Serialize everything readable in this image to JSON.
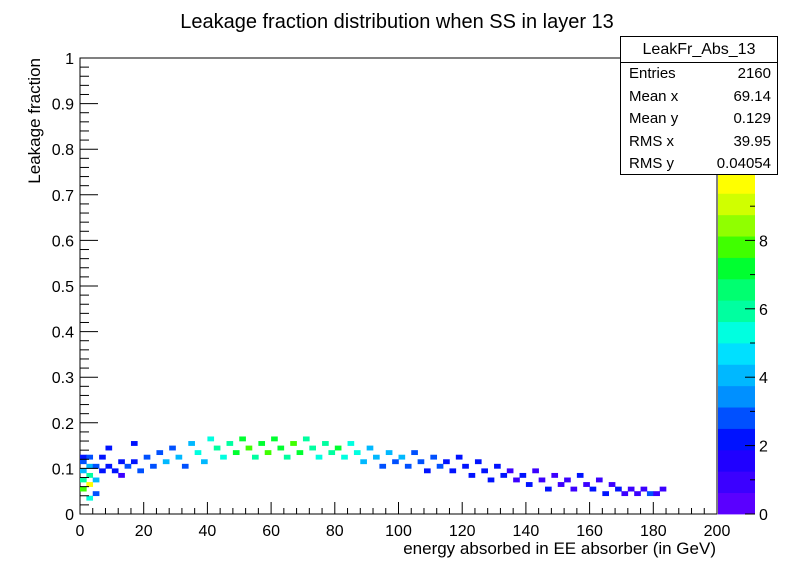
{
  "chart_data": {
    "type": "heatmap",
    "title": "Leakage fraction distribution when SS in layer 13",
    "xlabel": "energy absorbed in EE absorber (in GeV)",
    "ylabel": "Leakage fraction",
    "xlim": [
      0,
      200
    ],
    "ylim": [
      0,
      1
    ],
    "x_ticks": [
      "0",
      "20",
      "40",
      "60",
      "80",
      "100",
      "120",
      "140",
      "160",
      "180",
      "200"
    ],
    "y_ticks": [
      "0",
      "0.1",
      "0.2",
      "0.3",
      "0.4",
      "0.5",
      "0.6",
      "0.7",
      "0.8",
      "0.9",
      "1"
    ],
    "z_range": [
      0,
      10
    ],
    "z_ticks": [
      "0",
      "2",
      "4",
      "6",
      "8"
    ],
    "bins": {
      "x_width": 2,
      "y_width": 0.01
    },
    "cells": [
      [
        0,
        0.05,
        8
      ],
      [
        0,
        0.07,
        6
      ],
      [
        0,
        0.09,
        4
      ],
      [
        0,
        0.11,
        3
      ],
      [
        0,
        0.12,
        2
      ],
      [
        2,
        0.03,
        5
      ],
      [
        2,
        0.06,
        10
      ],
      [
        2,
        0.08,
        6
      ],
      [
        2,
        0.1,
        4
      ],
      [
        2,
        0.12,
        3
      ],
      [
        4,
        0.04,
        3
      ],
      [
        4,
        0.07,
        4
      ],
      [
        4,
        0.1,
        3
      ],
      [
        6,
        0.09,
        2
      ],
      [
        6,
        0.12,
        2
      ],
      [
        8,
        0.1,
        2
      ],
      [
        8,
        0.14,
        2
      ],
      [
        10,
        0.09,
        2
      ],
      [
        12,
        0.08,
        1
      ],
      [
        12,
        0.11,
        2
      ],
      [
        14,
        0.1,
        3
      ],
      [
        16,
        0.11,
        2
      ],
      [
        16,
        0.15,
        2
      ],
      [
        18,
        0.09,
        3
      ],
      [
        20,
        0.12,
        3
      ],
      [
        22,
        0.1,
        3
      ],
      [
        24,
        0.13,
        3
      ],
      [
        26,
        0.11,
        4
      ],
      [
        28,
        0.14,
        3
      ],
      [
        30,
        0.12,
        4
      ],
      [
        32,
        0.1,
        3
      ],
      [
        34,
        0.15,
        4
      ],
      [
        36,
        0.13,
        5
      ],
      [
        38,
        0.11,
        4
      ],
      [
        40,
        0.16,
        5
      ],
      [
        42,
        0.14,
        6
      ],
      [
        44,
        0.12,
        5
      ],
      [
        46,
        0.15,
        6
      ],
      [
        48,
        0.13,
        7
      ],
      [
        50,
        0.16,
        7
      ],
      [
        52,
        0.14,
        8
      ],
      [
        54,
        0.12,
        6
      ],
      [
        56,
        0.15,
        7
      ],
      [
        58,
        0.13,
        8
      ],
      [
        60,
        0.16,
        7
      ],
      [
        62,
        0.14,
        7
      ],
      [
        64,
        0.12,
        6
      ],
      [
        66,
        0.15,
        8
      ],
      [
        68,
        0.13,
        7
      ],
      [
        70,
        0.16,
        6
      ],
      [
        72,
        0.14,
        6
      ],
      [
        74,
        0.12,
        5
      ],
      [
        76,
        0.15,
        6
      ],
      [
        78,
        0.13,
        6
      ],
      [
        80,
        0.14,
        7
      ],
      [
        82,
        0.12,
        5
      ],
      [
        84,
        0.15,
        5
      ],
      [
        86,
        0.13,
        5
      ],
      [
        88,
        0.11,
        4
      ],
      [
        90,
        0.14,
        4
      ],
      [
        92,
        0.12,
        4
      ],
      [
        94,
        0.1,
        3
      ],
      [
        96,
        0.13,
        4
      ],
      [
        98,
        0.11,
        3
      ],
      [
        100,
        0.12,
        4
      ],
      [
        102,
        0.1,
        3
      ],
      [
        104,
        0.13,
        3
      ],
      [
        106,
        0.11,
        3
      ],
      [
        108,
        0.09,
        2
      ],
      [
        110,
        0.12,
        3
      ],
      [
        112,
        0.1,
        3
      ],
      [
        114,
        0.11,
        2
      ],
      [
        116,
        0.09,
        2
      ],
      [
        118,
        0.12,
        2
      ],
      [
        120,
        0.1,
        2
      ],
      [
        122,
        0.08,
        2
      ],
      [
        124,
        0.11,
        2
      ],
      [
        126,
        0.09,
        2
      ],
      [
        128,
        0.07,
        2
      ],
      [
        130,
        0.1,
        2
      ],
      [
        132,
        0.08,
        2
      ],
      [
        134,
        0.09,
        1
      ],
      [
        136,
        0.07,
        1
      ],
      [
        138,
        0.08,
        2
      ],
      [
        140,
        0.06,
        2
      ],
      [
        142,
        0.09,
        1
      ],
      [
        144,
        0.07,
        1
      ],
      [
        146,
        0.05,
        2
      ],
      [
        148,
        0.08,
        1
      ],
      [
        150,
        0.06,
        1
      ],
      [
        152,
        0.07,
        1
      ],
      [
        154,
        0.05,
        1
      ],
      [
        156,
        0.08,
        2
      ],
      [
        158,
        0.06,
        1
      ],
      [
        160,
        0.05,
        2
      ],
      [
        162,
        0.07,
        1
      ],
      [
        164,
        0.04,
        2
      ],
      [
        166,
        0.06,
        1
      ],
      [
        168,
        0.05,
        2
      ],
      [
        170,
        0.04,
        1
      ],
      [
        172,
        0.05,
        1
      ],
      [
        174,
        0.04,
        1
      ],
      [
        176,
        0.05,
        1
      ],
      [
        178,
        0.04,
        3
      ],
      [
        180,
        0.04,
        1
      ],
      [
        182,
        0.05,
        1
      ]
    ]
  },
  "stats": {
    "name": "LeakFr_Abs_13",
    "rows": [
      {
        "label": "Entries",
        "value": "2160"
      },
      {
        "label": "Mean x",
        "value": "69.14"
      },
      {
        "label": "Mean y",
        "value": "0.129"
      },
      {
        "label": "RMS x",
        "value": "39.95"
      },
      {
        "label": "RMS y",
        "value": "0.04054"
      }
    ]
  },
  "palette": [
    "#5a00ff",
    "#3b00ff",
    "#2000ff",
    "#0012ff",
    "#0050ff",
    "#0090ff",
    "#00b8ff",
    "#00e0ff",
    "#00ffe0",
    "#00ffa0",
    "#00ff70",
    "#00ff30",
    "#40ff00",
    "#90ff00",
    "#d0ff00",
    "#ffff00"
  ]
}
